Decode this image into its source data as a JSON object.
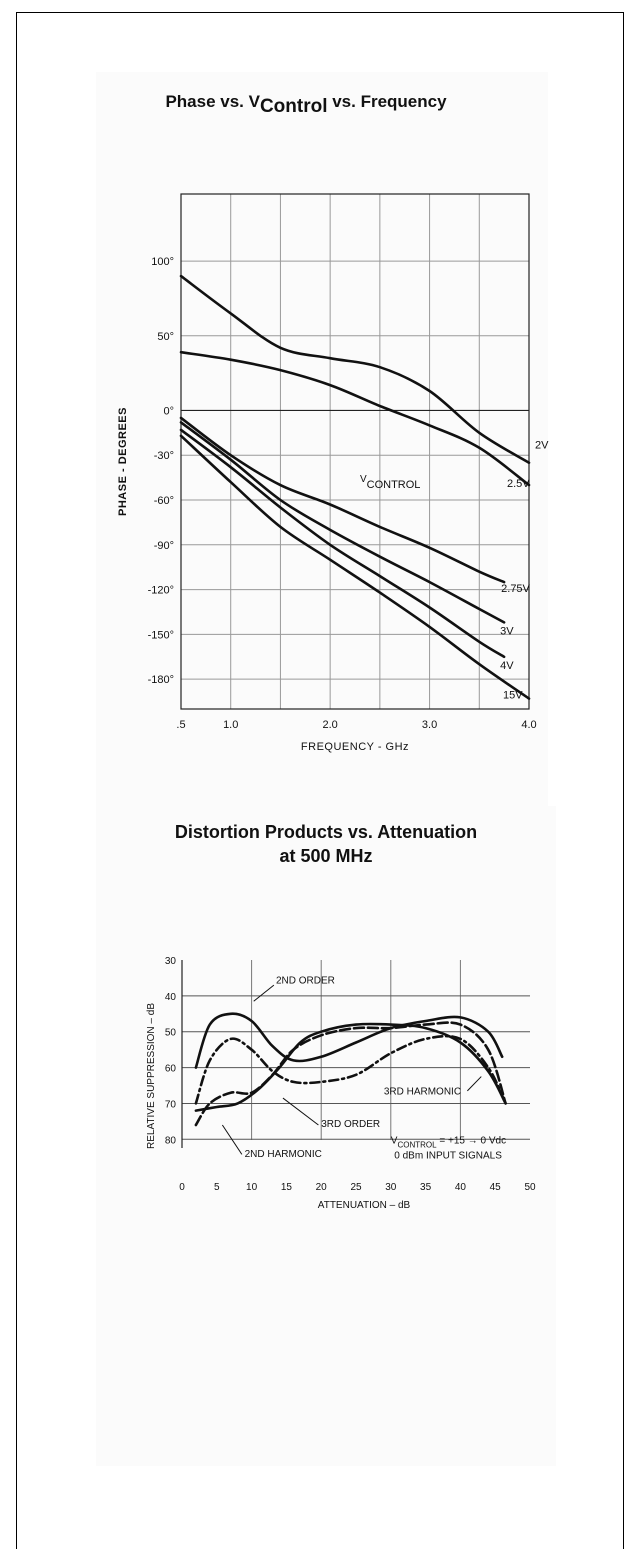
{
  "chart_data": [
    {
      "type": "line",
      "title": "Phase vs. VControl vs. Frequency",
      "title_parts": {
        "pre": "Phase vs. V",
        "sub": "Control",
        "post": " vs. Frequency"
      },
      "xlabel": "FREQUENCY - GHz",
      "ylabel": "PHASE - DEGREES",
      "xlim": [
        0.5,
        4.0
      ],
      "ylim": [
        -200,
        145
      ],
      "grid": true,
      "x_ticks": [
        {
          "v": 0.5,
          "label": ".5"
        },
        {
          "v": 1.0,
          "label": "1.0"
        },
        {
          "v": 2.0,
          "label": "2.0"
        },
        {
          "v": 3.0,
          "label": "3.0"
        },
        {
          "v": 4.0,
          "label": "4.0"
        }
      ],
      "y_ticks": [
        {
          "v": 100,
          "label": "100°"
        },
        {
          "v": 50,
          "label": "50°"
        },
        {
          "v": 0,
          "label": "0°"
        },
        {
          "v": -30,
          "label": "-30°"
        },
        {
          "v": -60,
          "label": "-60°"
        },
        {
          "v": -90,
          "label": "-90°"
        },
        {
          "v": -120,
          "label": "-120°"
        },
        {
          "v": -150,
          "label": "-150°"
        },
        {
          "v": -180,
          "label": "-180°"
        }
      ],
      "annotation": {
        "pre": "V",
        "sub": "CONTROL"
      },
      "series": [
        {
          "name": "2V",
          "x": [
            0.5,
            1.0,
            1.5,
            2.0,
            2.5,
            3.0,
            3.5,
            4.0
          ],
          "y": [
            90,
            65,
            42,
            35,
            29,
            13,
            -15,
            -35
          ]
        },
        {
          "name": "2.5V",
          "x": [
            0.5,
            1.0,
            1.5,
            2.0,
            2.5,
            3.0,
            3.5,
            4.0
          ],
          "y": [
            39,
            34,
            27,
            17,
            3,
            -10,
            -25,
            -50
          ]
        },
        {
          "name": "2.75V",
          "x": [
            0.5,
            1.0,
            1.5,
            2.0,
            2.5,
            3.0,
            3.5,
            3.75
          ],
          "y": [
            -5,
            -30,
            -50,
            -63,
            -78,
            -92,
            -108,
            -115
          ]
        },
        {
          "name": "3V",
          "x": [
            0.5,
            1.0,
            1.5,
            2.0,
            2.5,
            3.0,
            3.5,
            3.75
          ],
          "y": [
            -8,
            -33,
            -60,
            -80,
            -98,
            -115,
            -133,
            -142
          ]
        },
        {
          "name": "4V",
          "x": [
            0.5,
            1.0,
            1.5,
            2.0,
            2.5,
            3.0,
            3.5,
            3.75
          ],
          "y": [
            -13,
            -38,
            -65,
            -90,
            -111,
            -132,
            -155,
            -165
          ]
        },
        {
          "name": "15V",
          "x": [
            0.5,
            1.0,
            1.5,
            2.0,
            2.5,
            3.0,
            3.5,
            4.0
          ],
          "y": [
            -17,
            -48,
            -78,
            -100,
            -122,
            -145,
            -170,
            -193
          ]
        }
      ]
    },
    {
      "type": "line",
      "title": "Distortion Products vs. Attenuation at 500 MHz",
      "title_lines": [
        "Distortion Products vs. Attenuation",
        "at 500 MHz"
      ],
      "xlabel": "ATTENUATION – dB",
      "ylabel": "RELATIVE SUPPRESSION – dB",
      "xlim": [
        0,
        50
      ],
      "ylim": [
        30,
        88
      ],
      "y_inverted": true,
      "grid": true,
      "x_ticks": [
        {
          "v": 0,
          "label": "0"
        },
        {
          "v": 5,
          "label": "5"
        },
        {
          "v": 10,
          "label": "10"
        },
        {
          "v": 15,
          "label": "15"
        },
        {
          "v": 20,
          "label": "20"
        },
        {
          "v": 25,
          "label": "25"
        },
        {
          "v": 30,
          "label": "30"
        },
        {
          "v": 35,
          "label": "35"
        },
        {
          "v": 40,
          "label": "40"
        },
        {
          "v": 45,
          "label": "45"
        },
        {
          "v": 50,
          "label": "50"
        }
      ],
      "y_ticks": [
        {
          "v": 30,
          "label": "30"
        },
        {
          "v": 40,
          "label": "40"
        },
        {
          "v": 50,
          "label": "50"
        },
        {
          "v": 60,
          "label": "60"
        },
        {
          "v": 70,
          "label": "70"
        },
        {
          "v": 80,
          "label": "80"
        }
      ],
      "note_lines": [
        {
          "pre": "V",
          "sub": "CONTROL",
          "post": " = +15 → 0 Vdc"
        },
        {
          "pre": "0 dBm INPUT SIGNALS",
          "sub": "",
          "post": ""
        }
      ],
      "series": [
        {
          "name": "2ND ORDER",
          "style": "solid",
          "x": [
            2,
            4,
            7,
            10,
            13,
            16,
            20,
            25,
            30,
            35,
            40,
            44,
            46
          ],
          "y": [
            60,
            48,
            45,
            47,
            54,
            58,
            57,
            53,
            49,
            47,
            46,
            50,
            57
          ]
        },
        {
          "name": "3RD HARMONIC",
          "style": "dashdot",
          "x": [
            2,
            4,
            7,
            10,
            13,
            16,
            20,
            25,
            30,
            35,
            40,
            44,
            46.5
          ],
          "y": [
            70,
            58,
            52,
            55,
            61,
            64,
            64,
            62,
            56,
            52,
            52,
            60,
            70
          ]
        },
        {
          "name": "3RD ORDER",
          "style": "dashed",
          "x": [
            2,
            4,
            7,
            10,
            13,
            16,
            20,
            25,
            30,
            35,
            40,
            44,
            46.5
          ],
          "y": [
            76,
            70,
            67,
            67,
            62,
            55,
            51,
            49,
            49,
            48,
            48,
            55,
            70
          ]
        },
        {
          "name": "2ND HARMONIC",
          "style": "solid",
          "x": [
            2,
            5,
            8,
            11,
            14,
            17,
            20,
            25,
            30,
            35,
            40,
            44,
            46.5
          ],
          "y": [
            72,
            71,
            70,
            66,
            60,
            53,
            50,
            48,
            48,
            49,
            53,
            61,
            70
          ]
        }
      ]
    }
  ]
}
